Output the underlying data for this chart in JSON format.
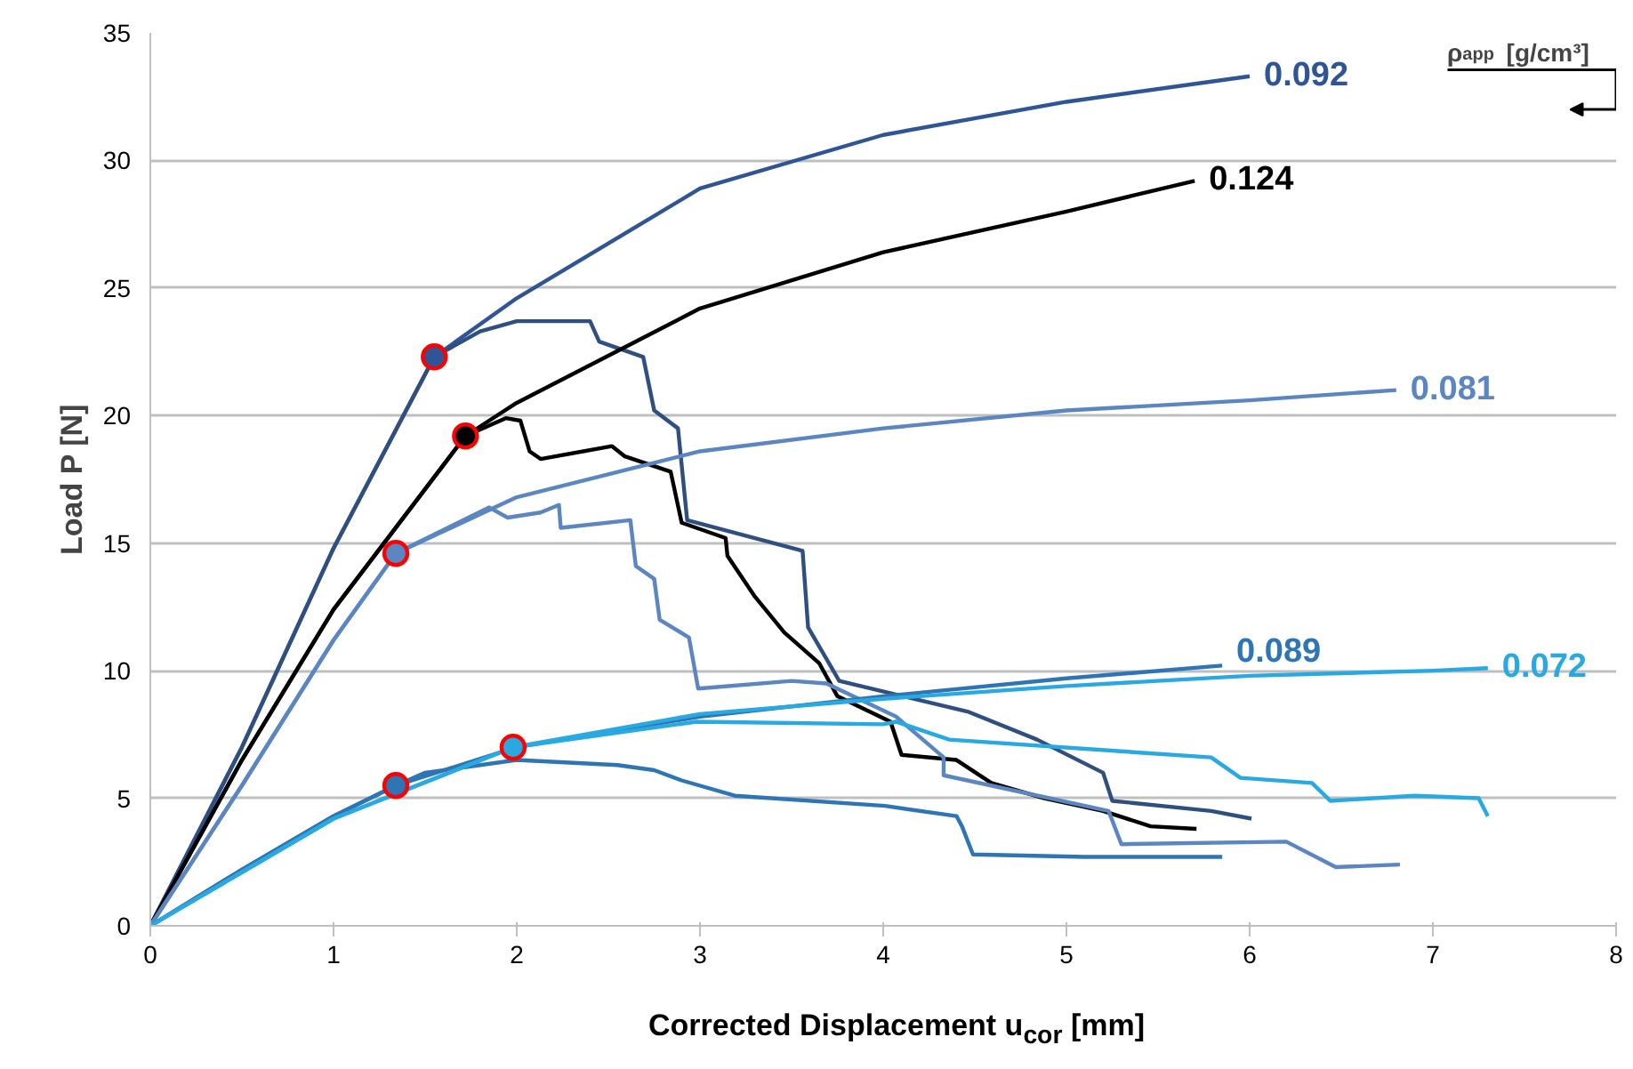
{
  "chart_data": {
    "type": "line",
    "xlabel": "Corrected Displacement u$_{cor}$ [mm]",
    "ylabel": "Load P [N]",
    "legend_title": "ρ$_{app}$ [g/cm³]",
    "xlim": [
      0,
      8
    ],
    "xticks": [
      0,
      1,
      2,
      3,
      4,
      5,
      6,
      7,
      8
    ],
    "ylim": [
      0,
      35
    ],
    "yticks": [
      0,
      5,
      10,
      15,
      20,
      25,
      30,
      35
    ],
    "grid": "y",
    "marker": "none",
    "line_style": "solid",
    "series": [
      {
        "name": "0.092",
        "color": "#2f5597",
        "x": [
          0,
          0.5,
          1,
          1.55,
          2,
          3,
          4,
          5,
          6
        ],
        "values": [
          0,
          7.0,
          14.8,
          22.3,
          24.6,
          28.9,
          31.0,
          32.3,
          33.3
        ]
      },
      {
        "color": "#2f4f80",
        "x": [
          0,
          0.5,
          1,
          1.55,
          1.8,
          2.0,
          2.4,
          2.45,
          2.69,
          2.75,
          2.88,
          2.93,
          3.56,
          3.59,
          3.76,
          4.46,
          4.84,
          5.2,
          5.25,
          5.79,
          6.01
        ],
        "values": [
          0,
          7.0,
          14.8,
          22.3,
          23.3,
          23.7,
          23.7,
          22.9,
          22.3,
          20.2,
          19.5,
          15.9,
          14.7,
          11.7,
          9.6,
          8.4,
          7.3,
          6.0,
          4.9,
          4.5,
          4.2
        ]
      },
      {
        "name": "0.124",
        "color": "#000000",
        "x": [
          0,
          0.5,
          1,
          1.72,
          2,
          3,
          4,
          5,
          5.7
        ],
        "values": [
          0,
          6.5,
          12.4,
          19.2,
          20.5,
          24.2,
          26.4,
          28.0,
          29.2
        ]
      },
      {
        "color": "#000000",
        "x": [
          0,
          0.5,
          1,
          1.72,
          1.94,
          2.02,
          2.07,
          2.13,
          2.52,
          2.59,
          2.84,
          2.9,
          3.14,
          3.15,
          3.3,
          3.46,
          3.65,
          3.75,
          4.04,
          4.1,
          4.4,
          4.59,
          4.88,
          5.2,
          5.46,
          5.71
        ],
        "values": [
          0,
          6.5,
          12.4,
          19.2,
          19.9,
          19.8,
          18.6,
          18.3,
          18.8,
          18.4,
          17.8,
          15.8,
          15.2,
          14.5,
          12.9,
          11.5,
          10.3,
          9.0,
          8.0,
          6.7,
          6.5,
          5.6,
          5.0,
          4.5,
          3.9,
          3.8
        ]
      },
      {
        "name": "0.081",
        "color": "#5b86c2",
        "x": [
          0,
          0.5,
          1,
          1.34,
          2,
          3,
          4,
          5,
          6,
          6.8
        ],
        "values": [
          0,
          5.5,
          11.2,
          14.6,
          16.8,
          18.6,
          19.5,
          20.2,
          20.6,
          21.0
        ]
      },
      {
        "color": "#5b86c2",
        "x": [
          0,
          0.5,
          1,
          1.34,
          1.85,
          1.95,
          2.13,
          2.23,
          2.24,
          2.62,
          2.65,
          2.75,
          2.78,
          2.94,
          2.99,
          3.5,
          3.69,
          4.07,
          4.33,
          4.33,
          5.23,
          5.3,
          6.2,
          6.47,
          6.82
        ],
        "values": [
          0,
          5.5,
          11.2,
          14.6,
          16.4,
          16.0,
          16.2,
          16.5,
          15.6,
          15.9,
          14.1,
          13.6,
          12.0,
          11.3,
          9.3,
          9.6,
          9.5,
          8.2,
          6.6,
          5.9,
          4.5,
          3.2,
          3.3,
          2.3,
          2.4
        ]
      },
      {
        "name": "0.089",
        "color": "#2e75b6",
        "x": [
          0,
          0.5,
          1,
          1.34,
          2,
          3,
          4,
          5,
          5.85
        ],
        "values": [
          0,
          2.2,
          4.3,
          5.5,
          7.0,
          8.2,
          9.0,
          9.7,
          10.2
        ]
      },
      {
        "color": "#2e75b6",
        "x": [
          0,
          0.5,
          1,
          1.34,
          1.5,
          2,
          2.55,
          2.75,
          2.9,
          3.19,
          4.01,
          4.4,
          4.43,
          4.49,
          5.1,
          5.85
        ],
        "values": [
          0,
          2.2,
          4.3,
          5.5,
          6.0,
          6.5,
          6.3,
          6.1,
          5.7,
          5.1,
          4.7,
          4.3,
          3.9,
          2.8,
          2.7,
          2.7
        ]
      },
      {
        "name": "0.072",
        "color": "#29a9e1",
        "x": [
          0,
          0.5,
          1,
          1.98,
          3,
          4,
          5,
          6,
          7,
          7.3
        ],
        "values": [
          0,
          2.1,
          4.2,
          7.0,
          8.3,
          8.9,
          9.4,
          9.8,
          10.0,
          10.1
        ]
      },
      {
        "color": "#29a9e1",
        "x": [
          0,
          0.5,
          1,
          1.98,
          2.98,
          4.0,
          4.07,
          4.36,
          5.79,
          5.95,
          6.34,
          6.44,
          6.9,
          7.25,
          7.3
        ],
        "values": [
          0,
          2.1,
          4.2,
          7.0,
          8.0,
          7.9,
          8.0,
          7.3,
          6.6,
          5.8,
          5.6,
          4.9,
          5.1,
          5.0,
          4.3
        ]
      },
      {
        "type": "scatter",
        "marker": "circle",
        "color": "#2f5597",
        "x": [
          1.55
        ],
        "values": [
          22.3
        ]
      },
      {
        "type": "scatter",
        "marker": "circle",
        "color": "#000000",
        "x": [
          1.72
        ],
        "values": [
          19.2
        ]
      },
      {
        "type": "scatter",
        "marker": "circle",
        "color": "#5b86c2",
        "x": [
          1.34
        ],
        "values": [
          14.6
        ]
      },
      {
        "type": "scatter",
        "marker": "circle",
        "color": "#2e75b6",
        "x": [
          1.34
        ],
        "values": [
          5.5
        ]
      },
      {
        "type": "scatter",
        "marker": "circle",
        "color": "#29a9e1",
        "x": [
          1.98
        ],
        "values": [
          7.0
        ]
      }
    ]
  }
}
